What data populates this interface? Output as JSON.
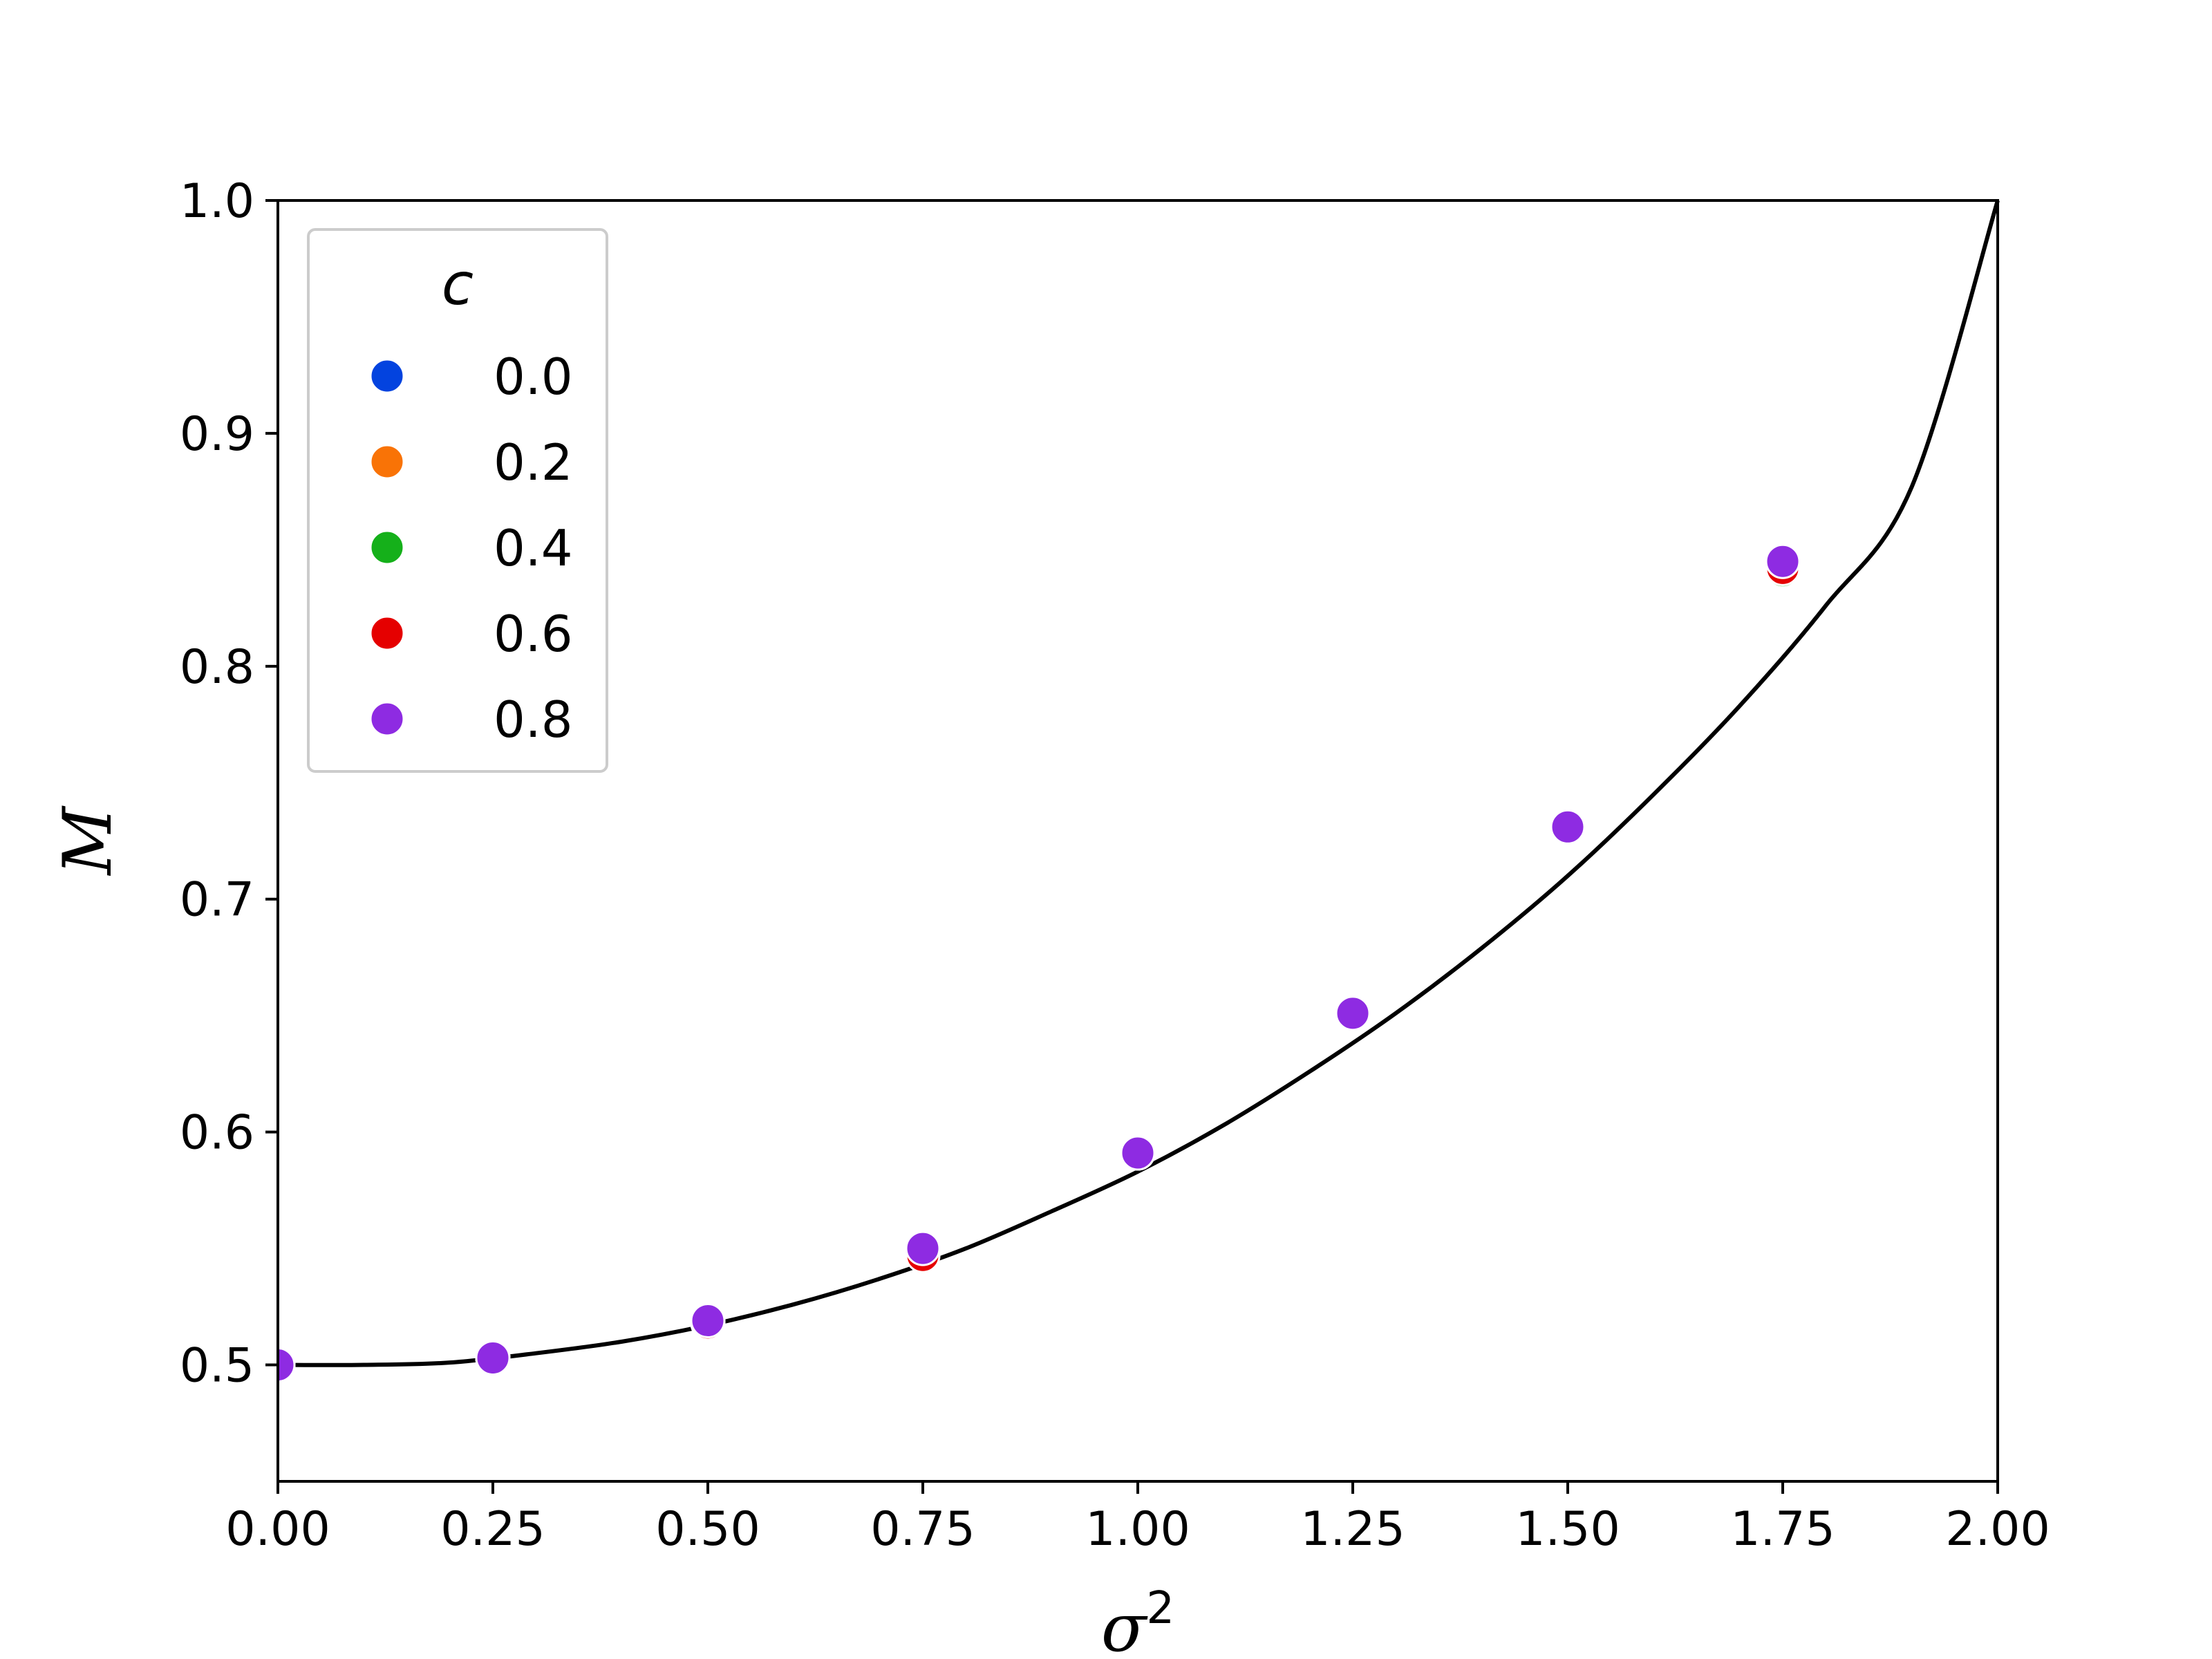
{
  "chart_data": {
    "type": "scatter",
    "xlabel": "σ",
    "xlabel_sup": "2",
    "ylabel": "M",
    "xlim": [
      0.0,
      2.0
    ],
    "ylim": [
      0.45,
      1.0
    ],
    "xticks": [
      "0.00",
      "0.25",
      "0.50",
      "0.75",
      "1.00",
      "1.25",
      "1.50",
      "1.75",
      "2.00"
    ],
    "xtick_values": [
      0.0,
      0.25,
      0.5,
      0.75,
      1.0,
      1.25,
      1.5,
      1.75,
      2.0
    ],
    "yticks": [
      "0.5",
      "0.6",
      "0.7",
      "0.8",
      "0.9",
      "1.0"
    ],
    "ytick_values": [
      0.5,
      0.6,
      0.7,
      0.8,
      0.9,
      1.0
    ],
    "grid": false,
    "legend": {
      "title": "c",
      "placement": "top-left"
    },
    "x": [
      0.0,
      0.25,
      0.5,
      0.75,
      1.0,
      1.25,
      1.5,
      1.75
    ],
    "series": [
      {
        "name": "0.0",
        "color": "#0343df",
        "values": [
          0.5,
          0.503,
          0.518,
          0.548,
          0.591,
          0.651,
          0.731,
          0.842
        ]
      },
      {
        "name": "0.2",
        "color": "#f97306",
        "values": [
          0.5,
          0.503,
          0.518,
          0.548,
          0.591,
          0.651,
          0.731,
          0.842
        ]
      },
      {
        "name": "0.4",
        "color": "#15b01a",
        "values": [
          0.5,
          0.503,
          0.518,
          0.548,
          0.591,
          0.651,
          0.731,
          0.841
        ]
      },
      {
        "name": "0.6",
        "color": "#e50000",
        "values": [
          0.5,
          0.503,
          0.518,
          0.547,
          0.591,
          0.651,
          0.731,
          0.842
        ]
      },
      {
        "name": "0.8",
        "color": "#8e2be2",
        "values": [
          0.5,
          0.503,
          0.519,
          0.55,
          0.591,
          0.651,
          0.731,
          0.845
        ]
      }
    ],
    "curve": {
      "color": "#000000",
      "x": [
        0.0,
        0.1,
        0.2,
        0.3,
        0.4,
        0.5,
        0.6,
        0.7,
        0.8,
        0.9,
        1.0,
        1.1,
        1.2,
        1.3,
        1.4,
        1.5,
        1.6,
        1.7,
        1.8,
        1.9,
        2.0
      ],
      "y": [
        0.5,
        0.5,
        0.501,
        0.505,
        0.51,
        0.517,
        0.526,
        0.537,
        0.55,
        0.566,
        0.583,
        0.603,
        0.626,
        0.651,
        0.679,
        0.71,
        0.745,
        0.783,
        0.826,
        0.877,
        1.0
      ]
    }
  }
}
